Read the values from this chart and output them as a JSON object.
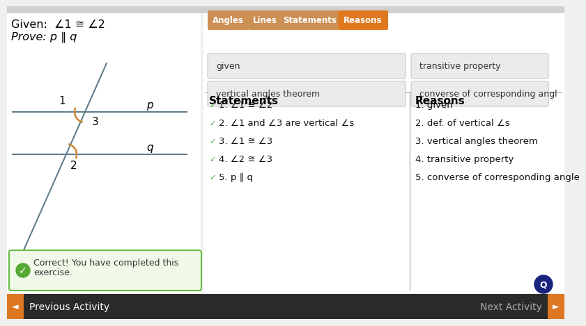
{
  "bg_color": "#f0f0f0",
  "white": "#ffffff",
  "given_text": "Given:  ∠1 ≅ ∠2",
  "prove_text": "Prove: p ∥ q",
  "tab_labels": [
    "Angles",
    "Lines",
    "Statements",
    "Reasons"
  ],
  "tab_active": 3,
  "tab_active_color": "#e07820",
  "tab_inactive_color": "#cc9055",
  "answer_box1_left": "given",
  "answer_box1_right": "transitive property",
  "answer_box2_left": "vertical angles theorem",
  "answer_box2_right": "converse of corresponding angl",
  "statements_header": "Statements",
  "reasons_header": "Reasons",
  "statements": [
    "1. ∠1 ≅ ∠2",
    "2. ∠1 and ∠3 are vertical ∠s",
    "3. ∠1 ≅ ∠3",
    "4. ∠2 ≅ ∠3",
    "5. p ∥ q"
  ],
  "reasons": [
    "1. given",
    "2. def. of vertical ∠s",
    "3. vertical angles theorem",
    "4. transitive property",
    "5. converse of corresponding angle"
  ],
  "check_color": "#5aaa50",
  "line_color": "#607d8b",
  "angle_arc_color": "#cc8833",
  "correct_box_text1": "Correct! You have completed this",
  "correct_box_text2": "exercise.",
  "correct_box_border": "#66bb44",
  "correct_box_bg": "#f0f8e8",
  "correct_icon_color": "#55aa33",
  "nav_bg": "#2a2a2a",
  "nav_text_color": "#aaaaaa",
  "nav_arrow_bg": "#dd7722",
  "chat_btn_color": "#1a237e",
  "top_bar_color": "#d0d0d0"
}
